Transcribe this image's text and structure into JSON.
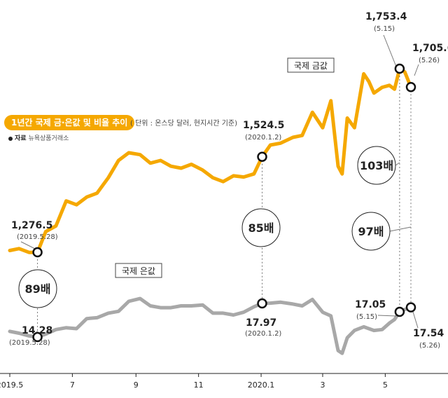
{
  "title": "1년간 국제 금·은값 및 비율 추이",
  "unit_note": "( 단위 : 온스당 달러, 현지시간 기준)",
  "source_label": "자료",
  "source_text": "뉴욕상품거래소",
  "colors": {
    "gold": "#f5a800",
    "silver": "#a8a8a8",
    "text": "#222222"
  },
  "chart_data": {
    "type": "line",
    "x_ticks": [
      "2019.5",
      "7",
      "9",
      "11",
      "2020.1",
      "3",
      "5"
    ],
    "series": [
      {
        "name": "국제 금값",
        "color": "#f5a800",
        "x": [
          "2019.5.1",
          "2019.5.10",
          "2019.5.20",
          "2019.5.28",
          "2019.6.5",
          "2019.6.15",
          "2019.6.25",
          "2019.7.5",
          "2019.7.15",
          "2019.7.25",
          "2019.8.5",
          "2019.8.15",
          "2019.8.25",
          "2019.9.5",
          "2019.9.15",
          "2019.9.25",
          "2019.10.5",
          "2019.10.15",
          "2019.10.25",
          "2019.11.5",
          "2019.11.15",
          "2019.11.25",
          "2019.12.5",
          "2019.12.15",
          "2019.12.25",
          "2020.1.2",
          "2020.1.10",
          "2020.1.20",
          "2020.2.1",
          "2020.2.10",
          "2020.2.20",
          "2020.3.1",
          "2020.3.9",
          "2020.3.16",
          "2020.3.20",
          "2020.3.25",
          "2020.4.1",
          "2020.4.10",
          "2020.4.15",
          "2020.4.20",
          "2020.4.28",
          "2020.5.5",
          "2020.5.10",
          "2020.5.15",
          "2020.5.20",
          "2020.5.26"
        ],
        "values": [
          1281,
          1286,
          1276,
          1276.5,
          1330,
          1345,
          1410,
          1400,
          1420,
          1430,
          1470,
          1515,
          1535,
          1530,
          1508,
          1515,
          1500,
          1495,
          1505,
          1490,
          1470,
          1460,
          1475,
          1472,
          1480,
          1524.5,
          1555,
          1560,
          1575,
          1580,
          1640,
          1600,
          1670,
          1500,
          1480,
          1625,
          1600,
          1740,
          1720,
          1690,
          1705,
          1710,
          1700,
          1753.4,
          1745,
          1705.6
        ]
      },
      {
        "name": "국제 은값",
        "color": "#a8a8a8",
        "x": [
          "2019.5.1",
          "2019.5.10",
          "2019.5.20",
          "2019.5.28",
          "2019.6.5",
          "2019.6.15",
          "2019.6.25",
          "2019.7.5",
          "2019.7.15",
          "2019.7.25",
          "2019.8.5",
          "2019.8.15",
          "2019.8.25",
          "2019.9.5",
          "2019.9.15",
          "2019.9.25",
          "2019.10.5",
          "2019.10.15",
          "2019.10.25",
          "2019.11.5",
          "2019.11.15",
          "2019.11.25",
          "2019.12.5",
          "2019.12.15",
          "2019.12.25",
          "2020.1.2",
          "2020.1.10",
          "2020.1.20",
          "2020.2.1",
          "2020.2.10",
          "2020.2.20",
          "2020.3.1",
          "2020.3.9",
          "2020.3.16",
          "2020.3.20",
          "2020.3.25",
          "2020.4.1",
          "2020.4.10",
          "2020.4.15",
          "2020.4.20",
          "2020.4.28",
          "2020.5.5",
          "2020.5.10",
          "2020.5.15",
          "2020.5.20",
          "2020.5.26"
        ],
        "values": [
          14.9,
          14.7,
          14.4,
          14.28,
          14.6,
          15.1,
          15.3,
          15.2,
          16.3,
          16.4,
          16.9,
          17.1,
          18.2,
          18.5,
          17.7,
          17.5,
          17.5,
          17.7,
          17.7,
          17.8,
          16.9,
          16.9,
          16.7,
          17.0,
          17.6,
          17.97,
          18.0,
          18.1,
          17.9,
          17.7,
          18.4,
          17.0,
          16.6,
          12.8,
          12.5,
          14.2,
          15.0,
          15.4,
          15.2,
          15.0,
          15.1,
          15.8,
          16.2,
          17.05,
          17.3,
          17.54
        ]
      }
    ],
    "annotations": [
      {
        "series": "국제 금값",
        "x": "2019.5.28",
        "value_label": "1,276.5",
        "date_label": "(2019.5.28)"
      },
      {
        "series": "국제 은값",
        "x": "2019.5.28",
        "value_label": "14.28",
        "date_label": "(2019.5.28)"
      },
      {
        "series": "국제 금값",
        "x": "2020.1.2",
        "value_label": "1,524.5",
        "date_label": "(2020.1.2)"
      },
      {
        "series": "국제 은값",
        "x": "2020.1.2",
        "value_label": "17.97",
        "date_label": "(2020.1.2)"
      },
      {
        "series": "국제 금값",
        "x": "2020.5.15",
        "value_label": "1,753.4",
        "date_label": "(5.15)"
      },
      {
        "series": "국제 은값",
        "x": "2020.5.15",
        "value_label": "17.05",
        "date_label": "(5.15)"
      },
      {
        "series": "국제 금값",
        "x": "2020.5.26",
        "value_label": "1,705.6",
        "date_label": "(5.26)"
      },
      {
        "series": "국제 은값",
        "x": "2020.5.26",
        "value_label": "17.54",
        "date_label": "(5.26)"
      }
    ],
    "ratios": [
      {
        "x": "2019.5.28",
        "label": "89배"
      },
      {
        "x": "2020.1.2",
        "label": "85배"
      },
      {
        "x": "2020.5.15",
        "label": "103배"
      },
      {
        "x": "2020.5.26",
        "label": "97배"
      }
    ],
    "series_labels": {
      "gold": "국제 금값",
      "silver": "국제 은값"
    }
  }
}
